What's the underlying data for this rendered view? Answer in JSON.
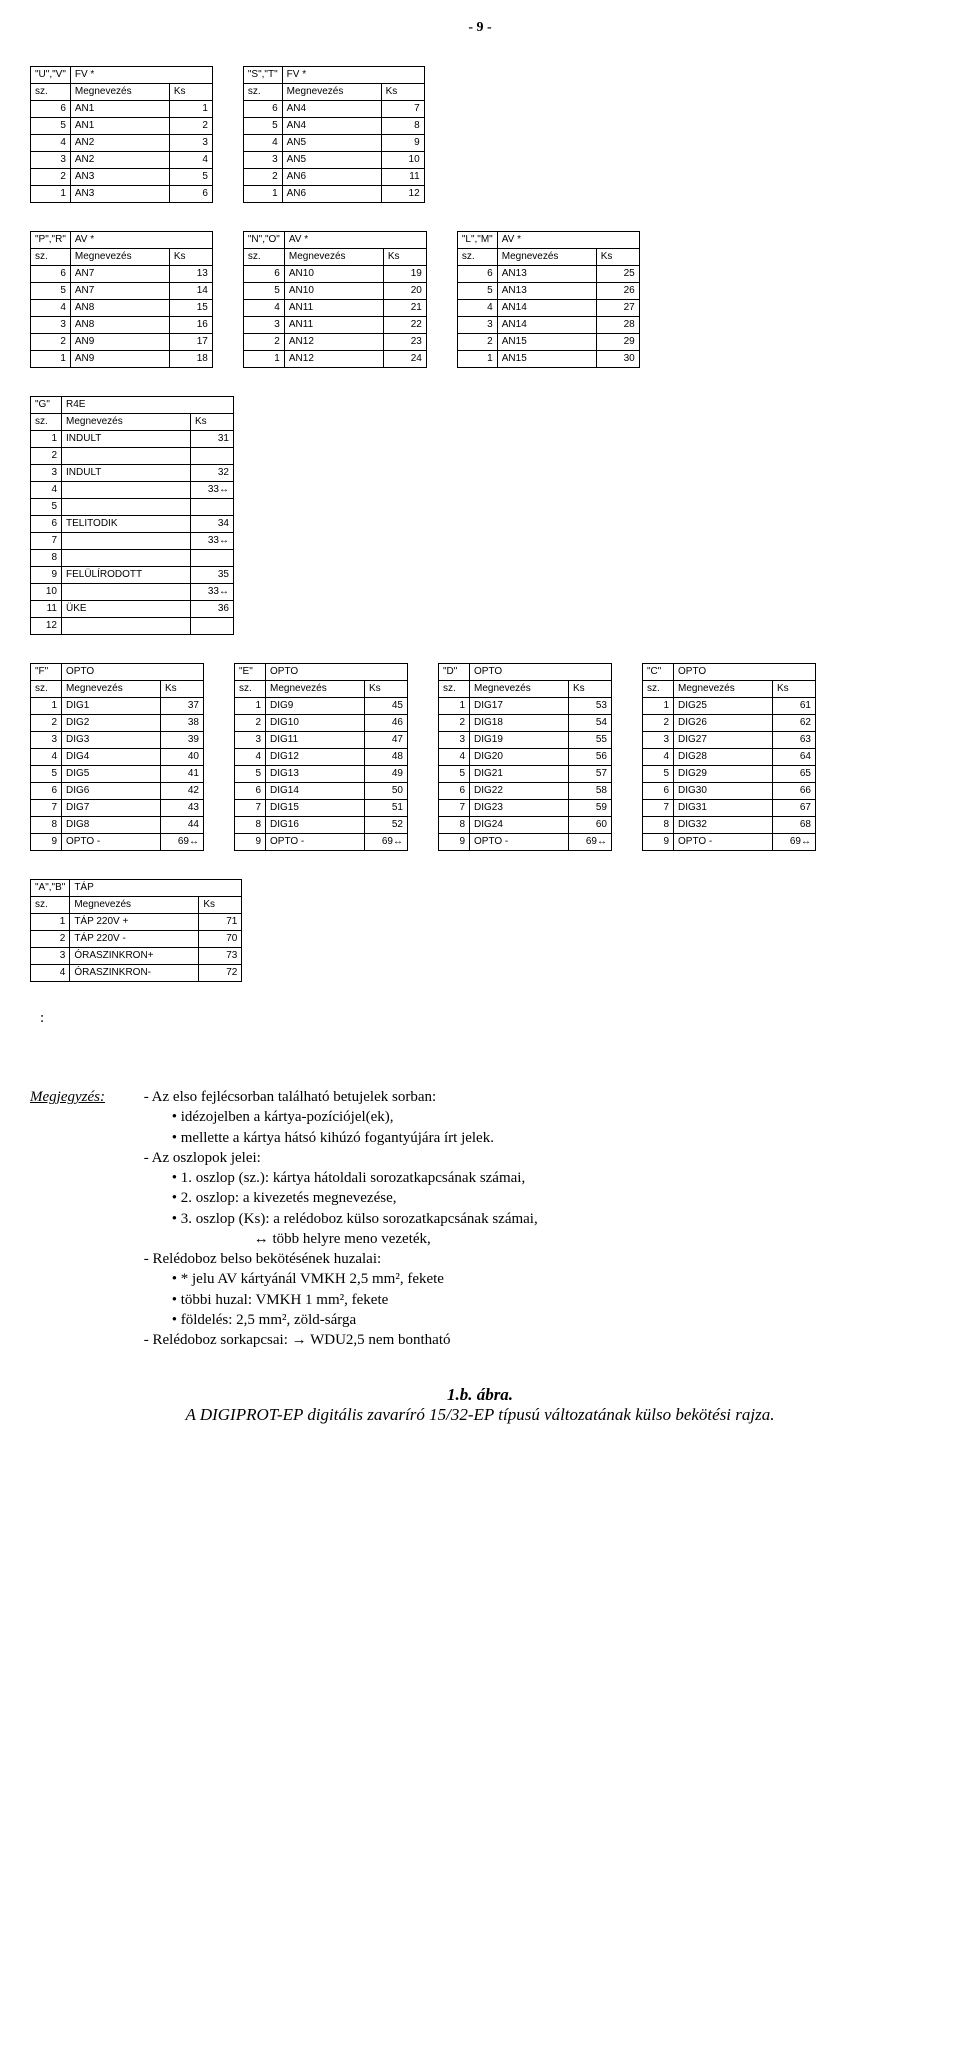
{
  "page_number": "- 9 -",
  "col_hdr_sz": "sz.",
  "col_hdr_m": "Megnevezés",
  "col_hdr_ks": "Ks",
  "tables": {
    "uv": {
      "title_l": "\"U\",\"V\"",
      "title_r": "FV    *",
      "rows": [
        [
          "6",
          "AN1",
          "1"
        ],
        [
          "5",
          "AN1",
          "2"
        ],
        [
          "4",
          "AN2",
          "3"
        ],
        [
          "3",
          "AN2",
          "4"
        ],
        [
          "2",
          "AN3",
          "5"
        ],
        [
          "1",
          "AN3",
          "6"
        ]
      ]
    },
    "st": {
      "title_l": "\"S\",\"T\"",
      "title_r": "FV    *",
      "rows": [
        [
          "6",
          "AN4",
          "7"
        ],
        [
          "5",
          "AN4",
          "8"
        ],
        [
          "4",
          "AN5",
          "9"
        ],
        [
          "3",
          "AN5",
          "10"
        ],
        [
          "2",
          "AN6",
          "11"
        ],
        [
          "1",
          "AN6",
          "12"
        ]
      ]
    },
    "pr": {
      "title_l": "\"P\",\"R\"",
      "title_r": "AV    *",
      "rows": [
        [
          "6",
          "AN7",
          "13"
        ],
        [
          "5",
          "AN7",
          "14"
        ],
        [
          "4",
          "AN8",
          "15"
        ],
        [
          "3",
          "AN8",
          "16"
        ],
        [
          "2",
          "AN9",
          "17"
        ],
        [
          "1",
          "AN9",
          "18"
        ]
      ]
    },
    "no": {
      "title_l": "\"N\",\"O\"",
      "title_r": "AV    *",
      "rows": [
        [
          "6",
          "AN10",
          "19"
        ],
        [
          "5",
          "AN10",
          "20"
        ],
        [
          "4",
          "AN11",
          "21"
        ],
        [
          "3",
          "AN11",
          "22"
        ],
        [
          "2",
          "AN12",
          "23"
        ],
        [
          "1",
          "AN12",
          "24"
        ]
      ]
    },
    "lm": {
      "title_l": "\"L\",\"M\"",
      "title_r": "AV    *",
      "rows": [
        [
          "6",
          "AN13",
          "25"
        ],
        [
          "5",
          "AN13",
          "26"
        ],
        [
          "4",
          "AN14",
          "27"
        ],
        [
          "3",
          "AN14",
          "28"
        ],
        [
          "2",
          "AN15",
          "29"
        ],
        [
          "1",
          "AN15",
          "30"
        ]
      ]
    },
    "g": {
      "title_l": "\"G\"",
      "title_r": "R4E",
      "rows": [
        [
          "1",
          "INDULT",
          "31"
        ],
        [
          "2",
          "",
          ""
        ],
        [
          "3",
          "INDULT",
          "32"
        ],
        [
          "4",
          "",
          "33↔"
        ],
        [
          "5",
          "",
          ""
        ],
        [
          "6",
          "TELITODIK",
          "34"
        ],
        [
          "7",
          "",
          "33↔"
        ],
        [
          "8",
          "",
          ""
        ],
        [
          "9",
          "FELÜLÍRODOTT",
          "35"
        ],
        [
          "10",
          "",
          "33↔"
        ],
        [
          "11",
          "ÜKE",
          "36"
        ],
        [
          "12",
          "",
          ""
        ]
      ]
    },
    "f": {
      "title_l": "\"F\"",
      "title_r": "OPTO",
      "rows": [
        [
          "1",
          "DIG1",
          "37"
        ],
        [
          "2",
          "DIG2",
          "38"
        ],
        [
          "3",
          "DIG3",
          "39"
        ],
        [
          "4",
          "DIG4",
          "40"
        ],
        [
          "5",
          "DIG5",
          "41"
        ],
        [
          "6",
          "DIG6",
          "42"
        ],
        [
          "7",
          "DIG7",
          "43"
        ],
        [
          "8",
          "DIG8",
          "44"
        ],
        [
          "9",
          "OPTO -",
          "69↔"
        ]
      ]
    },
    "e": {
      "title_l": "\"E\"",
      "title_r": "OPTO",
      "rows": [
        [
          "1",
          "DIG9",
          "45"
        ],
        [
          "2",
          "DIG10",
          "46"
        ],
        [
          "3",
          "DIG11",
          "47"
        ],
        [
          "4",
          "DIG12",
          "48"
        ],
        [
          "5",
          "DIG13",
          "49"
        ],
        [
          "6",
          "DIG14",
          "50"
        ],
        [
          "7",
          "DIG15",
          "51"
        ],
        [
          "8",
          "DIG16",
          "52"
        ],
        [
          "9",
          "OPTO -",
          "69↔"
        ]
      ]
    },
    "d": {
      "title_l": "\"D\"",
      "title_r": "OPTO",
      "rows": [
        [
          "1",
          "DIG17",
          "53"
        ],
        [
          "2",
          "DIG18",
          "54"
        ],
        [
          "3",
          "DIG19",
          "55"
        ],
        [
          "4",
          "DIG20",
          "56"
        ],
        [
          "5",
          "DIG21",
          "57"
        ],
        [
          "6",
          "DIG22",
          "58"
        ],
        [
          "7",
          "DIG23",
          "59"
        ],
        [
          "8",
          "DIG24",
          "60"
        ],
        [
          "9",
          "OPTO -",
          "69↔"
        ]
      ]
    },
    "c": {
      "title_l": "\"C\"",
      "title_r": "OPTO",
      "rows": [
        [
          "1",
          "DIG25",
          "61"
        ],
        [
          "2",
          "DIG26",
          "62"
        ],
        [
          "3",
          "DIG27",
          "63"
        ],
        [
          "4",
          "DIG28",
          "64"
        ],
        [
          "5",
          "DIG29",
          "65"
        ],
        [
          "6",
          "DIG30",
          "66"
        ],
        [
          "7",
          "DIG31",
          "67"
        ],
        [
          "8",
          "DIG32",
          "68"
        ],
        [
          "9",
          "OPTO -",
          "69↔"
        ]
      ]
    },
    "ab": {
      "title_l": "\"A\",\"B\"",
      "title_r": "TÁP",
      "rows": [
        [
          "1",
          "TÁP 220V +",
          "71"
        ],
        [
          "2",
          "TÁP 220V -",
          "70"
        ],
        [
          "3",
          "ÓRASZINKRON+",
          "73"
        ],
        [
          "4",
          "ÓRASZINKRON-",
          "72"
        ]
      ]
    }
  },
  "notes_label": "Megjegyzés:",
  "notes_lines": [
    "- Az elso fejlécsorban található betujelek sorban:",
    "• idézojelben a kártya-pozíciójel(ek),",
    "• mellette a kártya hátsó kihúzó fogantyújára írt jelek.",
    "- Az oszlopok jelei:",
    "• 1. oszlop (sz.): kártya hátoldali sorozatkapcsának számai,",
    "• 2. oszlop: a kivezetés megnevezése,",
    "• 3. oszlop (Ks): a relédoboz külso sorozatkapcsának számai,",
    "           ↔ több helyre meno vezeték,",
    "- Relédoboz belso bekötésének huzalai:",
    "• * jelu AV kártyánál VMKH 2,5 mm², fekete",
    "• többi huzal: VMKH 1 mm², fekete",
    "• földelés: 2,5 mm², zöld-sárga",
    "- Relédoboz sorkapcsai: → WDU2,5   nem bontható"
  ],
  "fig_num": "1.b. ábra.",
  "fig_cap": "A DIGIPROT-EP digitális zavaríró 15/32-EP típusú változatának külso bekötési rajza."
}
